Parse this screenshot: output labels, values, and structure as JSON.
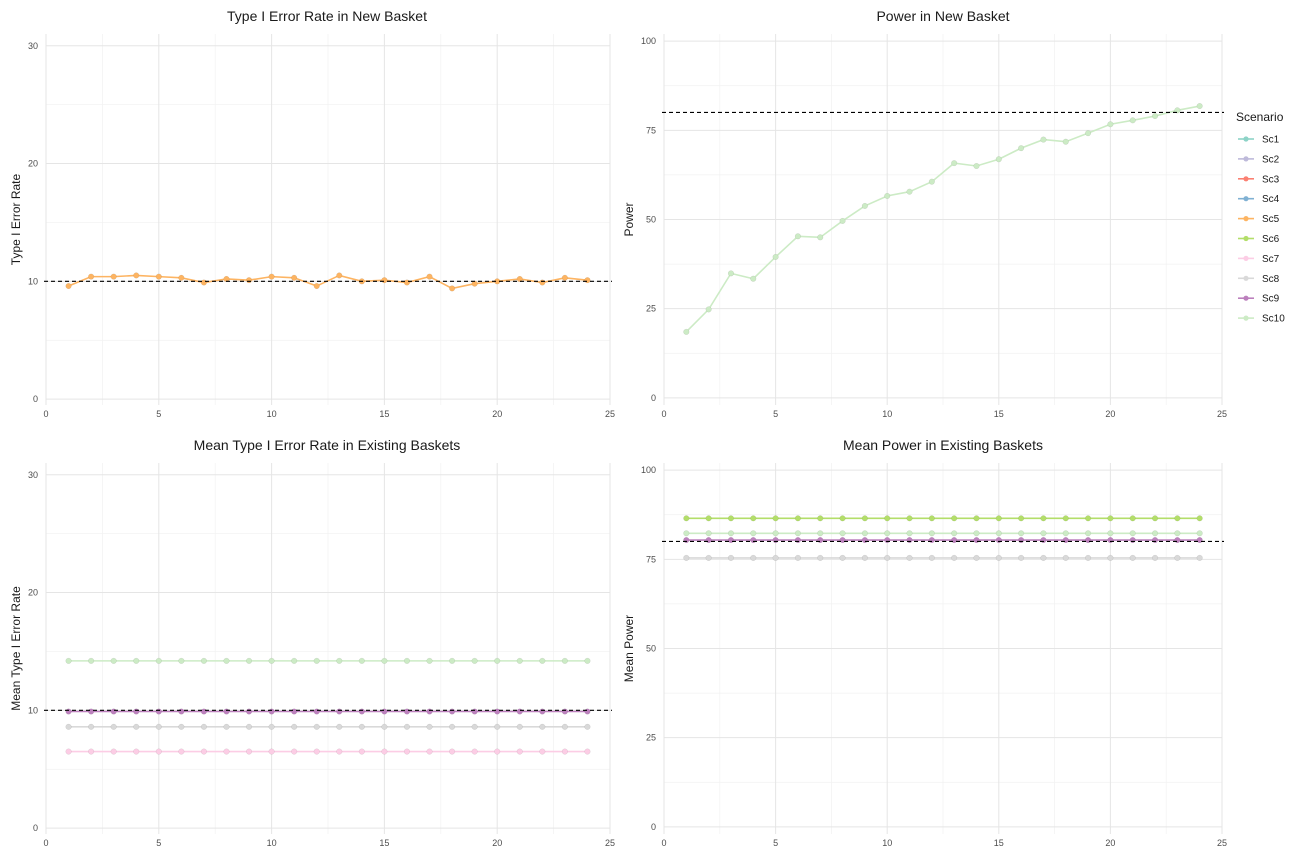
{
  "colors": {
    "Sc1": "#8dd3c7",
    "Sc2": "#bebada",
    "Sc3": "#fb8072",
    "Sc4": "#80b1d3",
    "Sc5": "#fdb462",
    "Sc6": "#b3de69",
    "Sc7": "#fccde5",
    "Sc8": "#d9d9d9",
    "Sc9": "#bc80bd",
    "Sc10": "#ccebc5",
    "reference_line": "#000000",
    "grid": "#e5e5e5"
  },
  "legend": {
    "title": "Scenario",
    "placement": "right",
    "items": [
      "Sc1",
      "Sc2",
      "Sc3",
      "Sc4",
      "Sc5",
      "Sc6",
      "Sc7",
      "Sc8",
      "Sc9",
      "Sc10"
    ]
  },
  "chart_data": [
    {
      "type": "line",
      "title": "Type I Error Rate in New Basket",
      "xlabel": "",
      "ylabel": "Type I Error Rate",
      "xlim": [
        0,
        25
      ],
      "ylim": [
        -0.5,
        31
      ],
      "xticks": [
        0,
        5,
        10,
        15,
        20,
        25
      ],
      "yticks": [
        0,
        10,
        20,
        30
      ],
      "reference_line": 10,
      "grid": true,
      "x": [
        1,
        2,
        3,
        4,
        5,
        6,
        7,
        8,
        9,
        10,
        11,
        12,
        13,
        14,
        15,
        16,
        17,
        18,
        19,
        20,
        21,
        22,
        23,
        24
      ],
      "series": [
        {
          "name": "Sc5",
          "values": [
            9.6,
            10.4,
            10.4,
            10.5,
            10.4,
            10.3,
            9.9,
            10.2,
            10.1,
            10.4,
            10.3,
            9.6,
            10.5,
            10.0,
            10.1,
            9.9,
            10.4,
            9.4,
            9.8,
            10.0,
            10.2,
            9.9,
            10.3,
            10.1
          ]
        }
      ]
    },
    {
      "type": "line",
      "title": "Power in New Basket",
      "xlabel": "",
      "ylabel": "Power",
      "xlim": [
        0,
        25
      ],
      "ylim": [
        -2,
        102
      ],
      "xticks": [
        0,
        5,
        10,
        15,
        20,
        25
      ],
      "yticks": [
        0,
        25,
        50,
        75,
        100
      ],
      "reference_line": 80,
      "grid": true,
      "x": [
        1,
        2,
        3,
        4,
        5,
        6,
        7,
        8,
        9,
        10,
        11,
        12,
        13,
        14,
        15,
        16,
        17,
        18,
        19,
        20,
        21,
        22,
        23,
        24
      ],
      "series": [
        {
          "name": "Sc10",
          "values": [
            18.5,
            24.8,
            34.9,
            33.4,
            39.5,
            45.3,
            45.0,
            49.6,
            53.8,
            56.6,
            57.8,
            60.6,
            65.8,
            65.0,
            66.9,
            70.0,
            72.4,
            71.8,
            74.2,
            76.7,
            77.8,
            79.0,
            80.6,
            81.8
          ]
        }
      ]
    },
    {
      "type": "line",
      "title": "Mean Type I Error Rate in Existing Baskets",
      "xlabel": "",
      "ylabel": "Mean Type I Error Rate",
      "xlim": [
        0,
        25
      ],
      "ylim": [
        -0.5,
        31
      ],
      "xticks": [
        0,
        5,
        10,
        15,
        20,
        25
      ],
      "yticks": [
        0,
        10,
        20,
        30
      ],
      "reference_line": 10,
      "grid": true,
      "x": [
        1,
        2,
        3,
        4,
        5,
        6,
        7,
        8,
        9,
        10,
        11,
        12,
        13,
        14,
        15,
        16,
        17,
        18,
        19,
        20,
        21,
        22,
        23,
        24
      ],
      "series": [
        {
          "name": "Sc10",
          "values": [
            14.2,
            14.2,
            14.2,
            14.2,
            14.2,
            14.2,
            14.2,
            14.2,
            14.2,
            14.2,
            14.2,
            14.2,
            14.2,
            14.2,
            14.2,
            14.2,
            14.2,
            14.2,
            14.2,
            14.2,
            14.2,
            14.2,
            14.2,
            14.2
          ]
        },
        {
          "name": "Sc9",
          "values": [
            9.9,
            9.9,
            9.9,
            9.9,
            9.9,
            9.9,
            9.9,
            9.9,
            9.9,
            9.9,
            9.9,
            9.9,
            9.9,
            9.9,
            9.9,
            9.9,
            9.9,
            9.9,
            9.9,
            9.9,
            9.9,
            9.9,
            9.9,
            9.9
          ]
        },
        {
          "name": "Sc8",
          "values": [
            8.6,
            8.6,
            8.6,
            8.6,
            8.6,
            8.6,
            8.6,
            8.6,
            8.6,
            8.6,
            8.6,
            8.6,
            8.6,
            8.6,
            8.6,
            8.6,
            8.6,
            8.6,
            8.6,
            8.6,
            8.6,
            8.6,
            8.6,
            8.6
          ]
        },
        {
          "name": "Sc7",
          "values": [
            6.5,
            6.5,
            6.5,
            6.5,
            6.5,
            6.5,
            6.5,
            6.5,
            6.5,
            6.5,
            6.5,
            6.5,
            6.5,
            6.5,
            6.5,
            6.5,
            6.5,
            6.5,
            6.5,
            6.5,
            6.5,
            6.5,
            6.5,
            6.5
          ]
        }
      ]
    },
    {
      "type": "line",
      "title": "Mean Power in Existing Baskets",
      "xlabel": "",
      "ylabel": "Mean Power",
      "xlim": [
        0,
        25
      ],
      "ylim": [
        -2,
        102
      ],
      "xticks": [
        0,
        5,
        10,
        15,
        20,
        25
      ],
      "yticks": [
        0,
        25,
        50,
        75,
        100
      ],
      "reference_line": 80,
      "grid": true,
      "x": [
        1,
        2,
        3,
        4,
        5,
        6,
        7,
        8,
        9,
        10,
        11,
        12,
        13,
        14,
        15,
        16,
        17,
        18,
        19,
        20,
        21,
        22,
        23,
        24
      ],
      "series": [
        {
          "name": "Sc6",
          "values": [
            86.5,
            86.5,
            86.5,
            86.5,
            86.5,
            86.5,
            86.5,
            86.5,
            86.5,
            86.5,
            86.5,
            86.5,
            86.5,
            86.5,
            86.5,
            86.5,
            86.5,
            86.5,
            86.5,
            86.5,
            86.5,
            86.5,
            86.5,
            86.5
          ]
        },
        {
          "name": "Sc10",
          "values": [
            82.3,
            82.3,
            82.3,
            82.3,
            82.3,
            82.3,
            82.3,
            82.3,
            82.3,
            82.3,
            82.3,
            82.3,
            82.3,
            82.3,
            82.3,
            82.3,
            82.3,
            82.3,
            82.3,
            82.3,
            82.3,
            82.3,
            82.3,
            82.3
          ]
        },
        {
          "name": "Sc9",
          "values": [
            80.4,
            80.4,
            80.4,
            80.4,
            80.4,
            80.4,
            80.4,
            80.4,
            80.4,
            80.4,
            80.4,
            80.4,
            80.4,
            80.4,
            80.4,
            80.4,
            80.4,
            80.4,
            80.4,
            80.4,
            80.4,
            80.4,
            80.4,
            80.4
          ]
        },
        {
          "name": "Sc8",
          "values": [
            75.4,
            75.4,
            75.4,
            75.4,
            75.4,
            75.4,
            75.4,
            75.4,
            75.4,
            75.4,
            75.4,
            75.4,
            75.4,
            75.4,
            75.4,
            75.4,
            75.4,
            75.4,
            75.4,
            75.4,
            75.4,
            75.4,
            75.4,
            75.4
          ]
        }
      ]
    }
  ]
}
